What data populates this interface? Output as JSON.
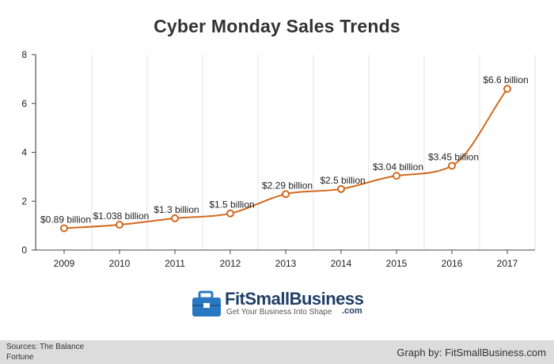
{
  "chart_data": {
    "type": "line",
    "title": "Cyber Monday Sales Trends",
    "xlabel": "",
    "ylabel": "",
    "categories": [
      "2009",
      "2010",
      "2011",
      "2012",
      "2013",
      "2014",
      "2015",
      "2016",
      "2017"
    ],
    "series": [
      {
        "values": [
          0.89,
          1.038,
          1.3,
          1.5,
          2.29,
          2.5,
          3.04,
          3.45,
          6.6
        ],
        "data_labels": [
          "$0.89 billion",
          "$1.038 billion",
          "$1.3 billion",
          "$1.5 billion",
          "$2.29 billion",
          "$2.5 billion",
          "$3.04 billion",
          "$3.45 billion",
          "$6.6 billion"
        ]
      }
    ],
    "ylim": [
      0,
      8
    ],
    "yticks": [
      0,
      2,
      4,
      6,
      8
    ],
    "grid": "vertical",
    "line_color": "#d2691e",
    "marker": "hollow-circle"
  },
  "logo": {
    "name": "FitSmallBusiness",
    "suffix": ".com",
    "tagline": "Get Your Business Into Shape",
    "color": "#1f3f66",
    "icon": "briefcase-icon"
  },
  "footer": {
    "sources_line1": "Sources: The Balance",
    "sources_line2": "Fortune",
    "credit": "Graph by: FitSmallBusiness.com",
    "background": "#dcdcdc"
  }
}
